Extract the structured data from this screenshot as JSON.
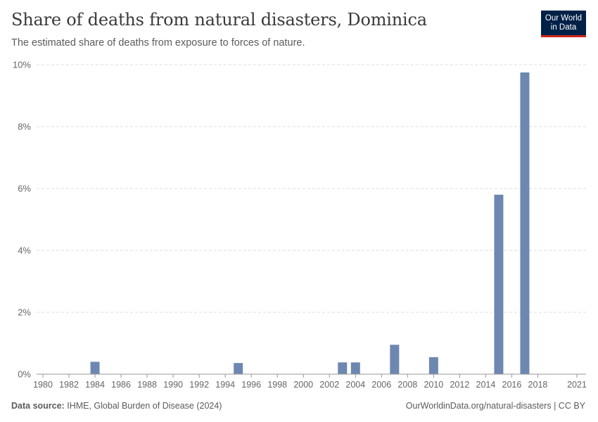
{
  "header": {
    "title": "Share of deaths from natural disasters, Dominica",
    "subtitle": "The estimated share of deaths from exposure to forces of nature.",
    "logo_line1": "Our World",
    "logo_line2": "in Data"
  },
  "footer": {
    "source_label": "Data source:",
    "source_text": "IHME, Global Burden of Disease (2024)",
    "url_text": "OurWorldinData.org/natural-disasters | CC BY"
  },
  "colors": {
    "bar": "#6d87b0",
    "grid": "#dddddd",
    "axis": "#999999",
    "text": "#666666"
  },
  "chart_data": {
    "type": "bar",
    "title": "Share of deaths from natural disasters, Dominica",
    "xlabel": "",
    "ylabel": "",
    "xlim": [
      1980,
      2021
    ],
    "ylim": [
      0,
      10
    ],
    "yticks": [
      0,
      2,
      4,
      6,
      8,
      10
    ],
    "ytick_labels": [
      "0%",
      "2%",
      "4%",
      "6%",
      "8%",
      "10%"
    ],
    "xticks": [
      1980,
      1982,
      1984,
      1986,
      1988,
      1990,
      1992,
      1994,
      1996,
      1998,
      2000,
      2002,
      2004,
      2006,
      2008,
      2010,
      2012,
      2014,
      2016,
      2018,
      2021
    ],
    "xtick_labels": [
      "1980",
      "1982",
      "1984",
      "1986",
      "1988",
      "1990",
      "1992",
      "1994",
      "1996",
      "1998",
      "2000",
      "2002",
      "2004",
      "2006",
      "2008",
      "2010",
      "2012",
      "2014",
      "2016",
      "2018",
      "2021"
    ],
    "categories": [
      1984,
      1995,
      2003,
      2004,
      2007,
      2010,
      2015,
      2017
    ],
    "values": [
      0.4,
      0.36,
      0.38,
      0.38,
      0.95,
      0.55,
      5.8,
      9.75
    ],
    "unit": "%",
    "grid": "horizontal-dashed"
  }
}
